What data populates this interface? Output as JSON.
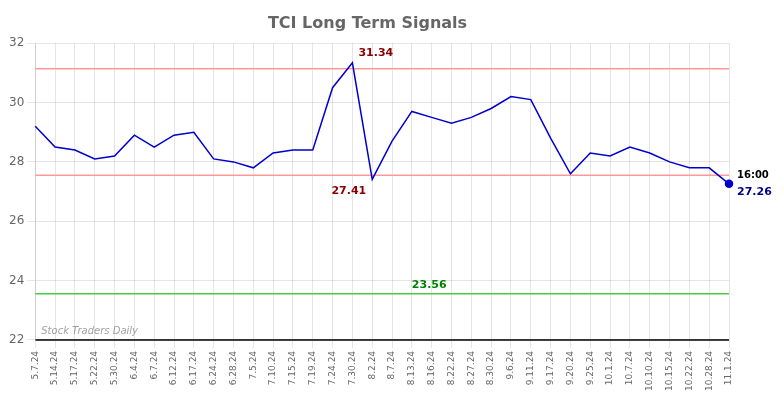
{
  "chart_data": {
    "type": "line",
    "title": "TCI Long Term Signals",
    "categories": [
      "5.7.24",
      "5.14.24",
      "5.17.24",
      "5.22.24",
      "5.30.24",
      "6.4.24",
      "6.7.24",
      "6.12.24",
      "6.17.24",
      "6.24.24",
      "6.28.24",
      "7.5.24",
      "7.10.24",
      "7.15.24",
      "7.19.24",
      "7.24.24",
      "7.30.24",
      "8.2.24",
      "8.7.24",
      "8.13.24",
      "8.16.24",
      "8.22.24",
      "8.27.24",
      "8.30.24",
      "9.6.24",
      "9.11.24",
      "9.17.24",
      "9.20.24",
      "9.25.24",
      "10.1.24",
      "10.7.24",
      "10.10.24",
      "10.15.24",
      "10.22.24",
      "10.28.24",
      "11.1.24"
    ],
    "values": [
      29.2,
      28.5,
      28.4,
      28.1,
      28.2,
      28.9,
      28.5,
      28.9,
      29.0,
      28.1,
      28.0,
      27.8,
      28.3,
      28.4,
      28.4,
      30.5,
      31.34,
      27.41,
      28.7,
      29.7,
      29.5,
      29.3,
      29.5,
      29.8,
      30.2,
      30.1,
      28.8,
      27.6,
      28.3,
      28.2,
      28.5,
      28.3,
      28.0,
      27.8,
      27.8,
      27.26
    ],
    "color": "#0000cc",
    "ylim": [
      22,
      32
    ],
    "yticks": [
      22,
      24,
      26,
      28,
      30,
      32
    ],
    "grid": true,
    "hlines": [
      {
        "value": 31.14,
        "color": "#ff9999"
      },
      {
        "value": 27.55,
        "color": "#ff9999"
      },
      {
        "value": 23.56,
        "color": "#44cc44"
      },
      {
        "value": 22.0,
        "color": "black"
      }
    ],
    "annotations": [
      {
        "text": "31.34",
        "x": "7.30.24",
        "y": 31.34,
        "color": "darkred"
      },
      {
        "text": "27.41",
        "x": "8.2.24",
        "y": 27.41,
        "color": "darkred"
      },
      {
        "text": "23.56",
        "x": "8.13.24",
        "y": 23.56,
        "color": "green"
      },
      {
        "text": "16:00",
        "x": "11.1.24",
        "y": 27.26,
        "color": "black"
      },
      {
        "text": "27.26",
        "x": "11.1.24",
        "y": 27.26,
        "color": "darkblue"
      },
      {
        "text": "Stock Traders Daily",
        "color": "gray"
      }
    ]
  }
}
